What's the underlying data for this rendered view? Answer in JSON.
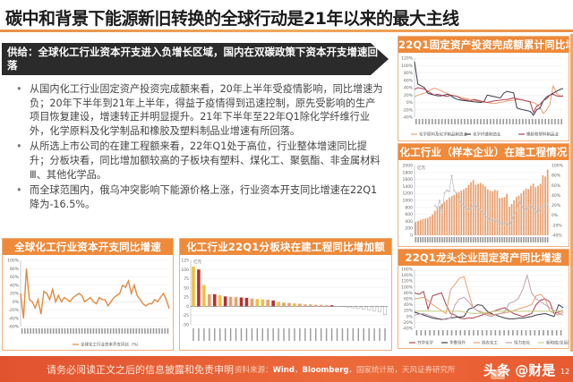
{
  "slide": {
    "title": "碳中和背景下能源新旧转换的全球行动是21年以来的最大主线",
    "banner": "供给：全球化工行业资本开支进入负增长区域，国内在双碳政策下资本开支增速回落",
    "bullets": [
      "从国内化工行业固定资产投资完成额来看，20年上半年受疫情影响，同比增速为负；20年下半年到21年上半年，得益于疫情得到迅速控制，原先受影响的生产项目恢复建设，增速转正并明显提升。21年下半年至22年Q1除化学纤维行业外，化学原料及化学制品和橡胶及塑料制品业增速有所回落。",
      "从所选上市公司的在建工程额来看，22年Q1处于高位，行业整体增速同比提升；分板块看，同比增加额较高的子板块有塑料、煤化工、聚氨酯、非金属材料Ⅲ、其他化学品。",
      "而全球范围内，俄乌冲突影响下能源价格上涨，行业资本开支同比增速在22Q1降为-16.5%。"
    ]
  },
  "footer": {
    "disclaimer": "请务必阅读正文之后的信息披露和免责申明",
    "source_prefix": "资料来源：",
    "source_bold_1": "Wind",
    "source_bold_2": "Bloomberg",
    "source_rest": "，国家统计局，天风证券研究所",
    "sep": "，",
    "watermark": "头条 @财是",
    "page": "12"
  },
  "colors": {
    "accent": "#ee8a3a",
    "banner_bg": "#2b2b2b",
    "footer": "#e85a30",
    "bar_orange": "#e8a070",
    "bar_yellow": "#f0c040",
    "bar_red": "#b83030"
  },
  "chart_data": [
    {
      "id": "fai",
      "type": "line",
      "title": "22Q1固定资产投资完成额累计同比增速",
      "yticks": [
        "120%",
        "100%",
        "80%",
        "60%",
        "40%",
        "20%",
        "0%",
        "-20%",
        "-40%"
      ],
      "ylim": [
        -40,
        120
      ],
      "legend": [
        "化学原料及化学制品制造业",
        "化学纤维制造业",
        "橡胶和塑料制品业"
      ],
      "series": [
        {
          "name": "化学原料及化学制品制造业",
          "color": "#e8a070",
          "values": [
            15,
            20,
            22,
            25,
            30,
            35,
            38,
            36,
            32,
            28,
            24,
            20,
            18,
            16,
            14,
            12,
            10,
            8,
            6,
            4,
            2,
            1,
            0,
            -2,
            -3,
            -2,
            0,
            2,
            4,
            5,
            6,
            8,
            8,
            6,
            4,
            2,
            0,
            -5,
            -15,
            -30,
            -20,
            -5,
            45,
            25,
            18,
            16
          ]
        },
        {
          "name": "化学纤维制造业",
          "color": "#3a3a4a",
          "values": [
            110,
            50,
            45,
            40,
            25,
            22,
            20,
            18,
            18,
            20,
            22,
            18,
            12,
            8,
            6,
            5,
            4,
            3,
            2,
            1,
            0,
            2,
            20,
            18,
            16,
            14,
            12,
            25,
            30,
            28,
            26,
            -15,
            -18,
            -20,
            -22,
            -24,
            -35,
            -20,
            -15,
            5,
            15,
            20,
            25,
            30,
            35,
            38
          ]
        },
        {
          "name": "橡胶和塑料制品业",
          "color": "#b04050",
          "values": [
            35,
            40,
            38,
            36,
            30,
            25,
            20,
            22,
            20,
            18,
            16,
            20,
            18,
            16,
            10,
            8,
            6,
            4,
            8,
            6,
            4,
            2,
            0,
            2,
            4,
            5,
            6,
            8,
            8,
            10,
            12,
            10,
            8,
            6,
            4,
            2,
            -28,
            -10,
            -5,
            5,
            10,
            20,
            22,
            18,
            16,
            18
          ]
        }
      ]
    },
    {
      "id": "cip",
      "type": "bar",
      "title": "化工行业（样本企业）在建工程情况",
      "yunit": "亿元",
      "yticks_left": [
        "2000",
        "1800",
        "1600",
        "1400",
        "1200",
        "1000",
        "800",
        "600",
        "400",
        "200",
        "0"
      ],
      "ylim_left": [
        0,
        2000
      ],
      "yticks_right": [
        "100%",
        "80%",
        "60%",
        "40%",
        "20%",
        "0%",
        "-20%",
        "-40%"
      ],
      "ylim_right": [
        -40,
        100
      ],
      "legend": [
        "在建工程",
        "同比增长"
      ],
      "bars": [
        380,
        410,
        440,
        470,
        480,
        500,
        540,
        600,
        700,
        760,
        840,
        900,
        960,
        1020,
        1080,
        1120,
        1160,
        1200,
        1240,
        1280,
        1320,
        1360,
        1440,
        1520,
        1580,
        1450,
        1480,
        1500,
        1460,
        1400,
        1320,
        1280,
        1260,
        1300,
        1280,
        1060,
        1080,
        1100,
        1180,
        820,
        900,
        1000,
        1100,
        1140,
        1200,
        1280,
        1340,
        1320,
        1420,
        1480,
        1380,
        1420,
        1480,
        1720,
        1680,
        1880
      ],
      "line": [
        null,
        null,
        null,
        null,
        null,
        null,
        null,
        null,
        20,
        15,
        30,
        5,
        45,
        50,
        48,
        80,
        50,
        45,
        30,
        25,
        20,
        15,
        10,
        15,
        20,
        22,
        15,
        10,
        5,
        0,
        -5,
        -10,
        -8,
        -10,
        -12,
        -14,
        -16,
        -18,
        -15,
        -20,
        -10,
        0,
        10,
        30,
        20,
        15,
        10,
        15,
        20,
        15,
        10,
        5,
        15,
        18,
        20,
        22
      ]
    },
    {
      "id": "lead",
      "type": "line",
      "title": "22Q1龙头企业固定资产同比增速",
      "yticks": [
        "160%",
        "140%",
        "120%",
        "100%",
        "80%",
        "60%",
        "40%",
        "20%",
        "0%",
        "-20%",
        "-40%"
      ],
      "ylim": [
        -40,
        160
      ],
      "legend": [
        "万华化学",
        "华鲁恒升",
        "扬农化工",
        "恒力石化",
        "新和成/龙佰集团"
      ],
      "series": [
        {
          "name": "万华化学",
          "color": "#b04050",
          "values": [
            80,
            75,
            85,
            25,
            70,
            75,
            80,
            40,
            10,
            5,
            -5,
            -8,
            -5,
            -5,
            0,
            5,
            10,
            15,
            20,
            25,
            30,
            20,
            10,
            5,
            0,
            5,
            10,
            40,
            55,
            60,
            50,
            10,
            15,
            20
          ]
        },
        {
          "name": "华鲁恒升",
          "color": "#3a3a4a",
          "values": [
            15,
            10,
            5,
            0,
            -5,
            -8,
            -10,
            -8,
            -5,
            -3,
            -2,
            0,
            25,
            30,
            40,
            38,
            20,
            10,
            5,
            0,
            -5,
            -8,
            -8,
            -6,
            -5,
            -3,
            0,
            5,
            8,
            10,
            5,
            0,
            40,
            30
          ]
        },
        {
          "name": "扬农化工",
          "color": "#e8a070",
          "values": [
            60,
            62,
            65,
            55,
            40,
            30,
            20,
            10,
            90,
            110,
            130,
            135,
            80,
            30,
            20,
            15,
            10,
            5,
            8,
            10,
            12,
            15,
            20,
            25,
            30,
            35,
            40,
            70,
            75,
            60,
            20,
            10,
            5,
            15
          ]
        },
        {
          "name": "恒力石化",
          "color": "#c0a0b0",
          "values": [
            5,
            8,
            10,
            5,
            0,
            -5,
            -8,
            -10,
            -5,
            40,
            60,
            65,
            50,
            30,
            20,
            10,
            5,
            0,
            5,
            10,
            15,
            45,
            50,
            60,
            90,
            140,
            80,
            60,
            50,
            40,
            30,
            20,
            10,
            5
          ]
        },
        {
          "name": "新和成",
          "color": "#c8d080",
          "values": [
            18,
            18,
            18,
            18,
            18,
            18,
            18,
            18,
            18,
            18,
            18,
            15,
            12,
            10,
            10,
            12,
            14,
            16,
            18,
            18,
            18,
            18,
            18,
            18,
            18,
            18,
            18,
            18,
            18,
            18,
            18,
            18,
            18,
            18
          ]
        }
      ]
    },
    {
      "id": "capex",
      "type": "line",
      "title": "全球化工行业资本开支同比增速",
      "yticks": [
        "100%",
        "80%",
        "60%",
        "40%",
        "20%",
        "0%",
        "-20%",
        "-40%",
        "-60%"
      ],
      "ylim": [
        -60,
        100
      ],
      "legend": [
        "全球化工行业资本开支同比（%）"
      ],
      "series": [
        {
          "name": "全球化工行业资本开支同比（%）",
          "color": "#e08a40",
          "values": [
            20,
            -40,
            80,
            5,
            0,
            -15,
            5,
            -30,
            25,
            20,
            5,
            30,
            0,
            15,
            0,
            10,
            5,
            0,
            10,
            15,
            20,
            15,
            0,
            5,
            10,
            0,
            -5,
            10,
            5,
            5,
            -10,
            0,
            10,
            15,
            20,
            40,
            35,
            50,
            20,
            40,
            15,
            5,
            -5,
            -10,
            -5,
            -5,
            5,
            0,
            10,
            20,
            5,
            -16.5
          ]
        }
      ]
    },
    {
      "id": "sub",
      "type": "bar",
      "title": "化工行业22Q1分板块在建工程同比增加额",
      "yunit": "亿元",
      "yticks": [
        "125",
        "100",
        "75",
        "50",
        "25",
        "0",
        "-25",
        "-50"
      ],
      "ylim": [
        -50,
        125
      ],
      "categories": [
        "塑料",
        "煤化工",
        "聚氨酯",
        "非金属材料Ⅲ",
        "其他化学品",
        "氟化工",
        "改性塑料",
        "磷化工",
        "农药",
        "纯碱",
        "氯碱",
        "无机盐",
        "涂料油墨",
        "钾肥",
        "氮肥",
        "日用化学品",
        "粘胶",
        "涤纶",
        "锦纶",
        "炭黑",
        "纺织化学品",
        "民爆用品",
        "其他塑料制品",
        "钛白粉",
        "氨纶",
        "橡胶助剂",
        "有机硅",
        "复合肥",
        "其他化学原料",
        "膜材料",
        "其他化学制品",
        "维纶",
        "轮胎",
        "磷肥",
        "氯碱Ⅲ",
        "合成树脂",
        "聚合物"
      ],
      "values": [
        108,
        100,
        58,
        33,
        33,
        30,
        27,
        26,
        25,
        24,
        23,
        21,
        20,
        19,
        18,
        16,
        12,
        10,
        9,
        8,
        7,
        5,
        5,
        4,
        4,
        3,
        3,
        1,
        0,
        -2,
        -4,
        -6,
        -8,
        -10,
        -12,
        -14,
        -22
      ],
      "colors": [
        "y",
        "r",
        "y",
        "o",
        "r",
        "y",
        "r",
        "o",
        "o",
        "r",
        "r",
        "o",
        "y",
        "y",
        "o",
        "r",
        "y",
        "o",
        "o",
        "y",
        "o",
        "o",
        "o",
        "o",
        "o",
        "o",
        "r",
        "o",
        "o",
        "o",
        "o",
        "o",
        "o",
        "o",
        "o",
        "o",
        "o"
      ]
    }
  ]
}
